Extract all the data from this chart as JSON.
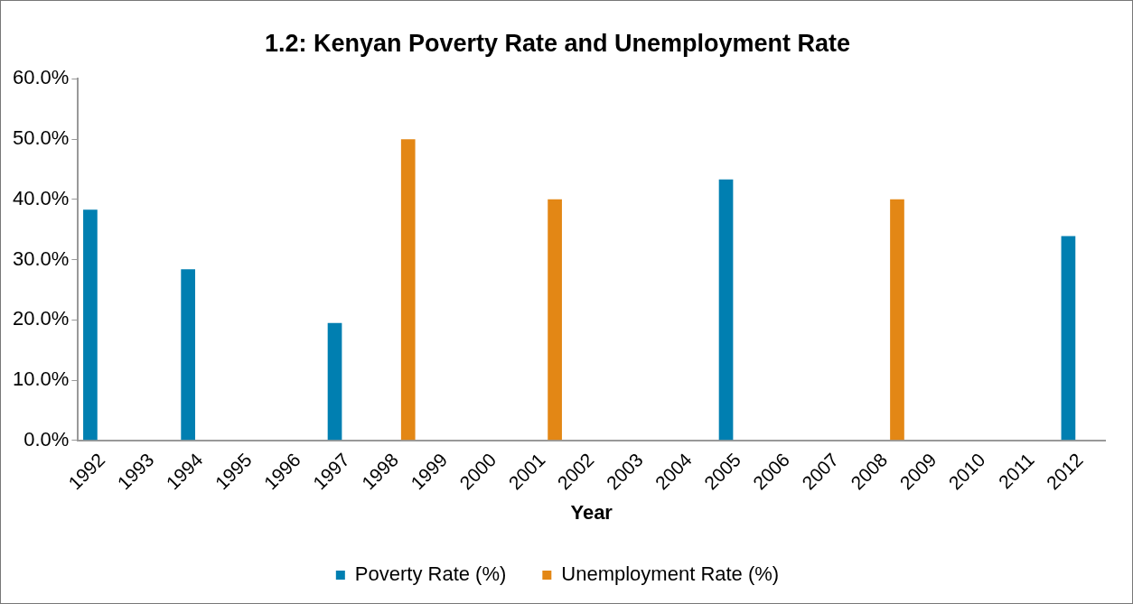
{
  "chart_data": {
    "type": "bar",
    "title": "1.2: Kenyan Poverty Rate and Unemployment Rate",
    "xlabel": "Year",
    "categories": [
      "1992",
      "1993",
      "1994",
      "1995",
      "1996",
      "1997",
      "1998",
      "1999",
      "2000",
      "2001",
      "2002",
      "2003",
      "2004",
      "2005",
      "2006",
      "2007",
      "2008",
      "2009",
      "2010",
      "2011",
      "2012"
    ],
    "series": [
      {
        "name": "Poverty Rate (%)",
        "color": "#007fb1",
        "values": [
          38.3,
          null,
          28.4,
          null,
          null,
          19.5,
          null,
          null,
          null,
          null,
          null,
          null,
          null,
          43.3,
          null,
          null,
          null,
          null,
          null,
          null,
          33.9
        ]
      },
      {
        "name": "Unemployment Rate (%)",
        "color": "#e38715",
        "values": [
          null,
          null,
          null,
          null,
          null,
          null,
          50.0,
          null,
          null,
          40.0,
          null,
          null,
          null,
          null,
          null,
          null,
          40.0,
          null,
          null,
          null,
          null
        ]
      }
    ],
    "ylim": [
      0,
      60
    ],
    "yticks": [
      {
        "value": 0,
        "label": "0.0%"
      },
      {
        "value": 10,
        "label": "10.0%"
      },
      {
        "value": 20,
        "label": "20.0%"
      },
      {
        "value": 30,
        "label": "30.0%"
      },
      {
        "value": 40,
        "label": "40.0%"
      },
      {
        "value": 50,
        "label": "50.0%"
      },
      {
        "value": 60,
        "label": "60.0%"
      }
    ],
    "grid": false,
    "legend": "bottom"
  }
}
